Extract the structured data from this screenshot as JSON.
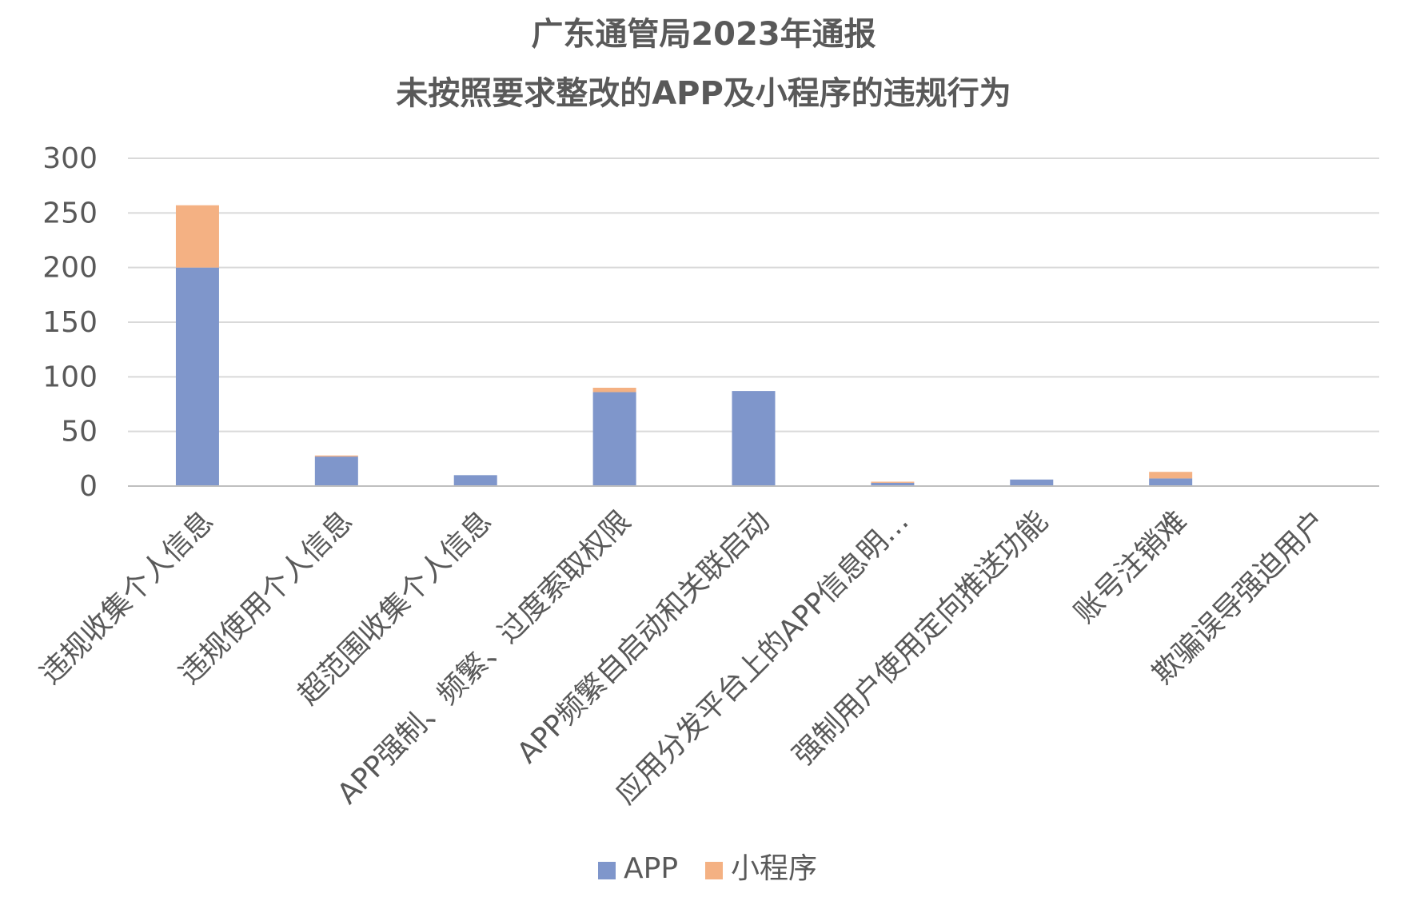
{
  "chart_data": {
    "type": "bar",
    "stacked": true,
    "title": "广东通管局2023年通报",
    "subtitle": "未按照要求整改的APP及小程序的违规行为",
    "xlabel": "",
    "ylabel": "",
    "ylim": [
      0,
      300
    ],
    "yticks": [
      "0",
      "50",
      "100",
      "150",
      "200",
      "250",
      "300"
    ],
    "grid": true,
    "legend_position": "bottom",
    "categories": [
      "违规收集个人信息",
      "违规使用个人信息",
      "超范围收集个人信息",
      "APP强制、频繁、过度索取权限",
      "APP频繁自启动和关联启动",
      "应用分发平台上的APP信息明…",
      "强制用户使用定向推送功能",
      "账号注销难",
      "欺骗误导强迫用户"
    ],
    "series": [
      {
        "name": "APP",
        "color": "#7f96cb",
        "values": [
          200,
          27,
          10,
          86,
          87,
          3,
          6,
          7,
          0
        ]
      },
      {
        "name": "小程序",
        "color": "#f4b183",
        "values": [
          57,
          1,
          0,
          4,
          0,
          1,
          0,
          6,
          0
        ]
      }
    ]
  }
}
